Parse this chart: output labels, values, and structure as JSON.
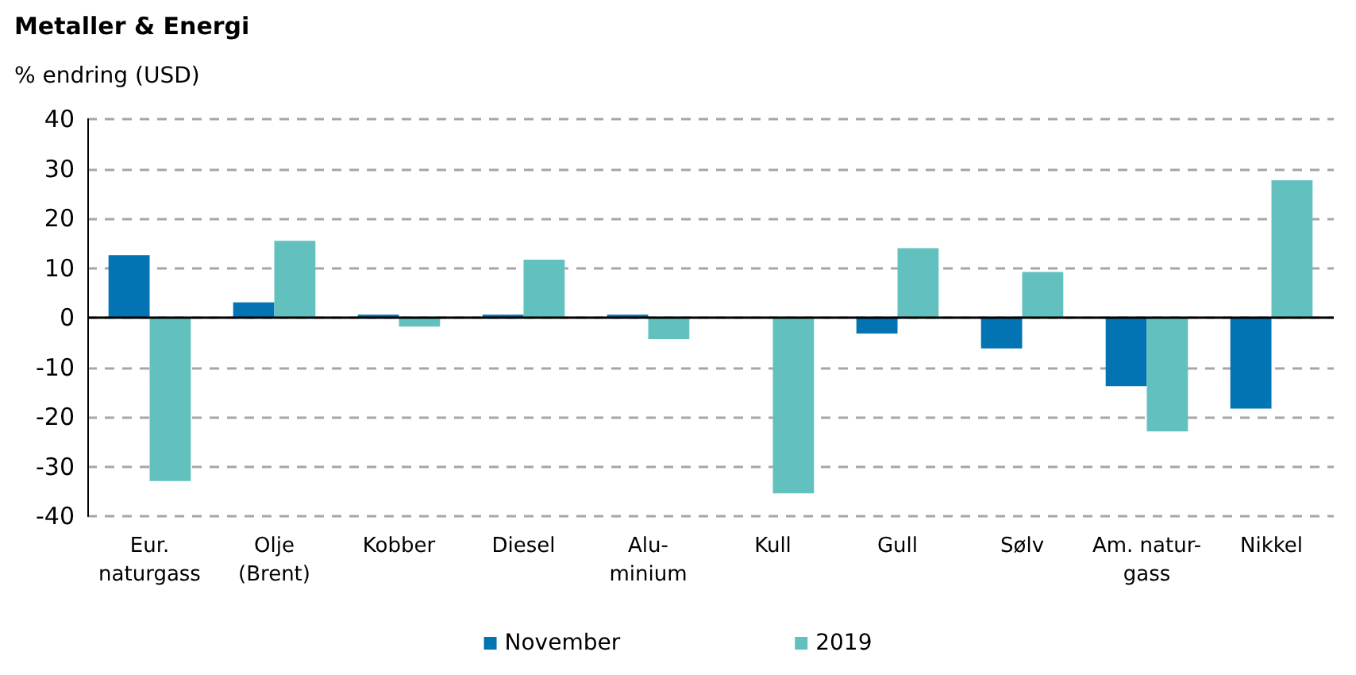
{
  "chart_data": {
    "type": "bar",
    "title": "Metaller & Energi",
    "ylabel": "% endring (USD)",
    "categories": [
      "Eur.\nnaturgass",
      "Olje\n(Brent)",
      "Kobber",
      "Diesel",
      "Alu-\nminium",
      "Kull",
      "Gull",
      "Sølv",
      "Am. natur-\ngass",
      "Nikkel"
    ],
    "series": [
      {
        "name": "November",
        "color": "#0273b3",
        "values": [
          12.6,
          3.1,
          0.6,
          0.6,
          0.6,
          0,
          -3.2,
          -6.2,
          -13.8,
          -18.3
        ]
      },
      {
        "name": "2019",
        "color": "#62c1bf",
        "values": [
          -32.9,
          15.5,
          -1.8,
          11.7,
          -4.3,
          -35.4,
          14.0,
          9.2,
          -22.9,
          27.7
        ]
      }
    ],
    "ylim": [
      -40,
      40
    ],
    "yticks": [
      -40,
      -30,
      -20,
      -10,
      0,
      10,
      20,
      30,
      40
    ],
    "grid": "y",
    "legend": "bottom"
  }
}
